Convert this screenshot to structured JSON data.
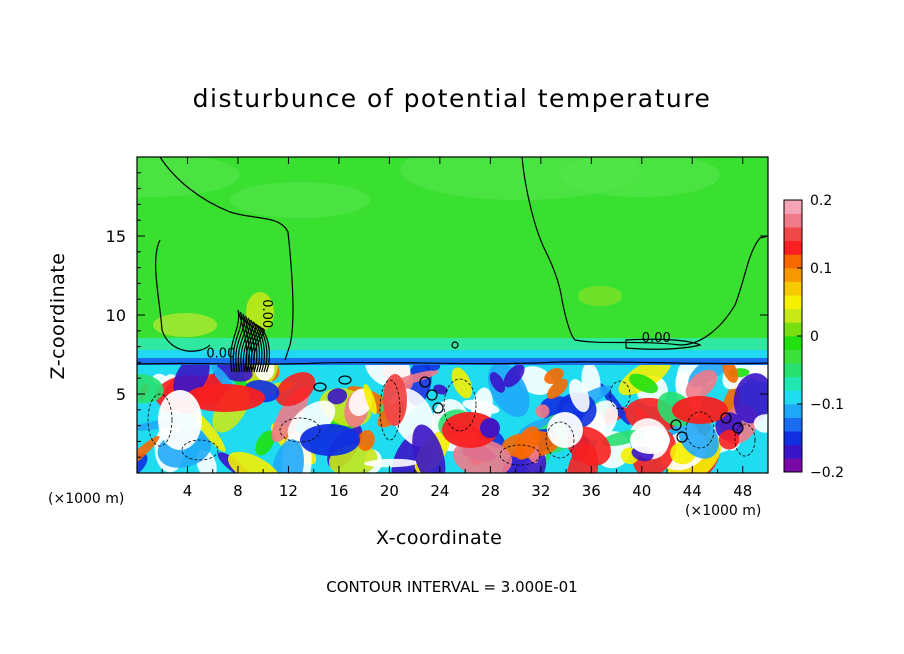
{
  "chart_data": {
    "type": "heatmap",
    "title": "disturbunce of potential temperature",
    "xlabel": "X-coordinate",
    "ylabel": "Z-coordinate",
    "x_unit_label": "(×1000 m)",
    "xlim": [
      0,
      50
    ],
    "ylim": [
      0,
      20
    ],
    "x_ticks": [
      4,
      8,
      12,
      16,
      20,
      24,
      28,
      32,
      36,
      40,
      44,
      48
    ],
    "y_ticks": [
      5,
      10,
      15
    ],
    "colorbar": {
      "range": [
        -0.2,
        0.2
      ],
      "tick_labels": [
        "0.2",
        "0.1",
        "0",
        "−0.1",
        "−0.2"
      ],
      "tick_values": [
        0.2,
        0.1,
        0,
        -0.1,
        -0.2
      ],
      "colors": [
        "#7a0aa8",
        "#3a14c8",
        "#1030e0",
        "#1a6cf0",
        "#20a8f8",
        "#20dcf0",
        "#20e8b0",
        "#28e070",
        "#3ce03a",
        "#20e010",
        "#78e010",
        "#c8e818",
        "#f4f000",
        "#f8c800",
        "#f89800",
        "#f86800",
        "#f82020",
        "#f04848",
        "#f07a8a",
        "#f4a4b4"
      ]
    },
    "contour_labels": [
      {
        "text": "0.00",
        "x": 10,
        "z": 11.0
      },
      {
        "text": "0.00",
        "x": 5.5,
        "z": 7.3
      },
      {
        "text": "0.00",
        "x": 40.0,
        "z": 8.3
      }
    ],
    "contour_interval_text": "CONTOUR INTERVAL = 3.000E-01"
  }
}
